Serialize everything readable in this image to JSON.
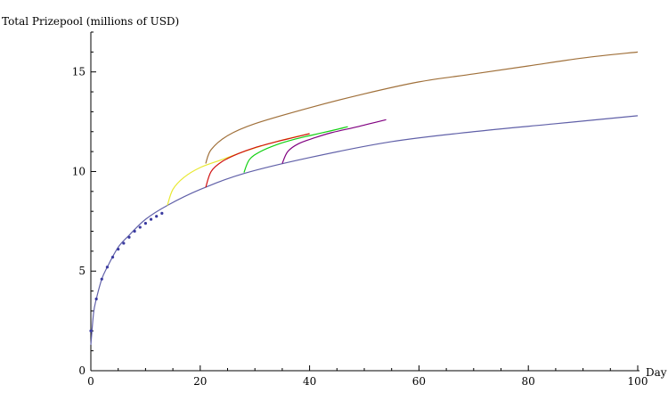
{
  "chart_data": {
    "type": "line",
    "title": "",
    "ylabel": "Total Prizepool (millions of USD)",
    "xlabel": "Day",
    "xlim": [
      0,
      100
    ],
    "ylim": [
      0,
      17
    ],
    "x_ticks": [
      0,
      20,
      40,
      60,
      80,
      100
    ],
    "y_ticks": [
      0,
      5,
      10,
      15
    ],
    "x_tick_labels": [
      "0",
      "20",
      "40",
      "60",
      "80",
      "100"
    ],
    "y_tick_labels": [
      "0",
      "5",
      "10",
      "15"
    ],
    "grid": false,
    "legend": "none",
    "observed_points": {
      "color": "#3a3aa0",
      "x": [
        0,
        1,
        2,
        3,
        4,
        5,
        6,
        7,
        8,
        9,
        10,
        11,
        12,
        13
      ],
      "y": [
        2.0,
        3.6,
        4.6,
        5.2,
        5.7,
        6.1,
        6.4,
        6.7,
        7.0,
        7.2,
        7.4,
        7.6,
        7.75,
        7.9
      ]
    },
    "series": [
      {
        "color": "#6060a8",
        "x": [
          0,
          0.5,
          1,
          2,
          3,
          5,
          7,
          10,
          14,
          20,
          28,
          40,
          55,
          70,
          85,
          100
        ],
        "y": [
          1.3,
          2.9,
          3.6,
          4.6,
          5.2,
          6.2,
          6.8,
          7.6,
          8.3,
          9.1,
          9.9,
          10.7,
          11.5,
          12.0,
          12.4,
          12.8
        ]
      },
      {
        "color": "#e8e830",
        "x": [
          14,
          15,
          17,
          20,
          24,
          28,
          32,
          36,
          40
        ],
        "y": [
          8.3,
          9.1,
          9.7,
          10.2,
          10.6,
          11.0,
          11.35,
          11.65,
          11.9
        ]
      },
      {
        "color": "#d01010",
        "x": [
          21,
          22,
          24,
          27,
          30,
          34,
          37,
          40
        ],
        "y": [
          9.2,
          10.0,
          10.5,
          10.9,
          11.2,
          11.5,
          11.7,
          11.9
        ]
      },
      {
        "color": "#10d010",
        "x": [
          28,
          29,
          31,
          34,
          37,
          40,
          44,
          47
        ],
        "y": [
          9.95,
          10.6,
          11.0,
          11.35,
          11.6,
          11.8,
          12.05,
          12.25
        ]
      },
      {
        "color": "#800080",
        "x": [
          35,
          36,
          38,
          41,
          44,
          48,
          51,
          54
        ],
        "y": [
          10.4,
          11.0,
          11.4,
          11.7,
          11.95,
          12.2,
          12.4,
          12.6
        ]
      },
      {
        "color": "#a0703a",
        "x": [
          21,
          22,
          25,
          30,
          40,
          50,
          60,
          70,
          80,
          90,
          100
        ],
        "y": [
          10.4,
          11.1,
          11.8,
          12.4,
          13.2,
          13.9,
          14.5,
          14.9,
          15.3,
          15.7,
          16.0
        ]
      }
    ]
  }
}
